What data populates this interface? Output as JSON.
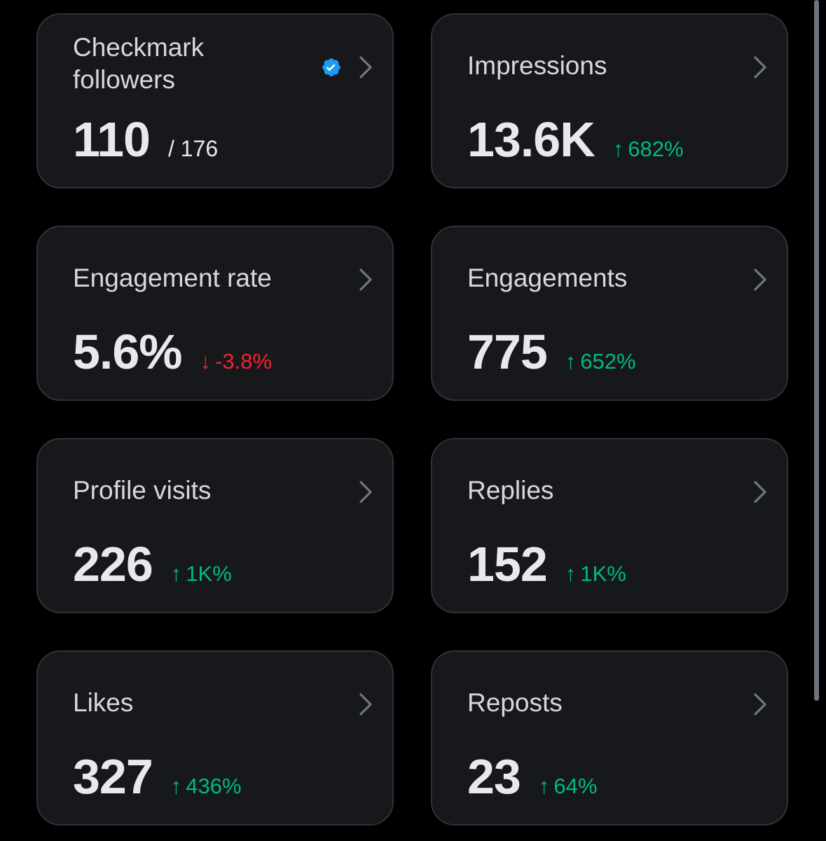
{
  "colors": {
    "background": "#000000",
    "card": "#16181c",
    "card_border": "#2f3336",
    "positive": "#00ba7c",
    "negative": "#f4212e",
    "verified": "#1d9bf0"
  },
  "cards": [
    {
      "title": "Checkmark followers",
      "value": "110",
      "sub": "/ 176",
      "icon": "verified-badge-icon"
    },
    {
      "title": "Impressions",
      "value": "13.6K",
      "change_arrow": "↑",
      "change": "682%",
      "direction": "up"
    },
    {
      "title": "Engagement rate",
      "value": "5.6%",
      "change_arrow": "↓",
      "change": "-3.8%",
      "direction": "down"
    },
    {
      "title": "Engagements",
      "value": "775",
      "change_arrow": "↑",
      "change": "652%",
      "direction": "up"
    },
    {
      "title": "Profile visits",
      "value": "226",
      "change_arrow": "↑",
      "change": "1K%",
      "direction": "up"
    },
    {
      "title": "Replies",
      "value": "152",
      "change_arrow": "↑",
      "change": "1K%",
      "direction": "up"
    },
    {
      "title": "Likes",
      "value": "327",
      "change_arrow": "↑",
      "change": "436%",
      "direction": "up"
    },
    {
      "title": "Reposts",
      "value": "23",
      "change_arrow": "↑",
      "change": "64%",
      "direction": "up"
    }
  ],
  "chevron_icon": "chevron-right-icon"
}
